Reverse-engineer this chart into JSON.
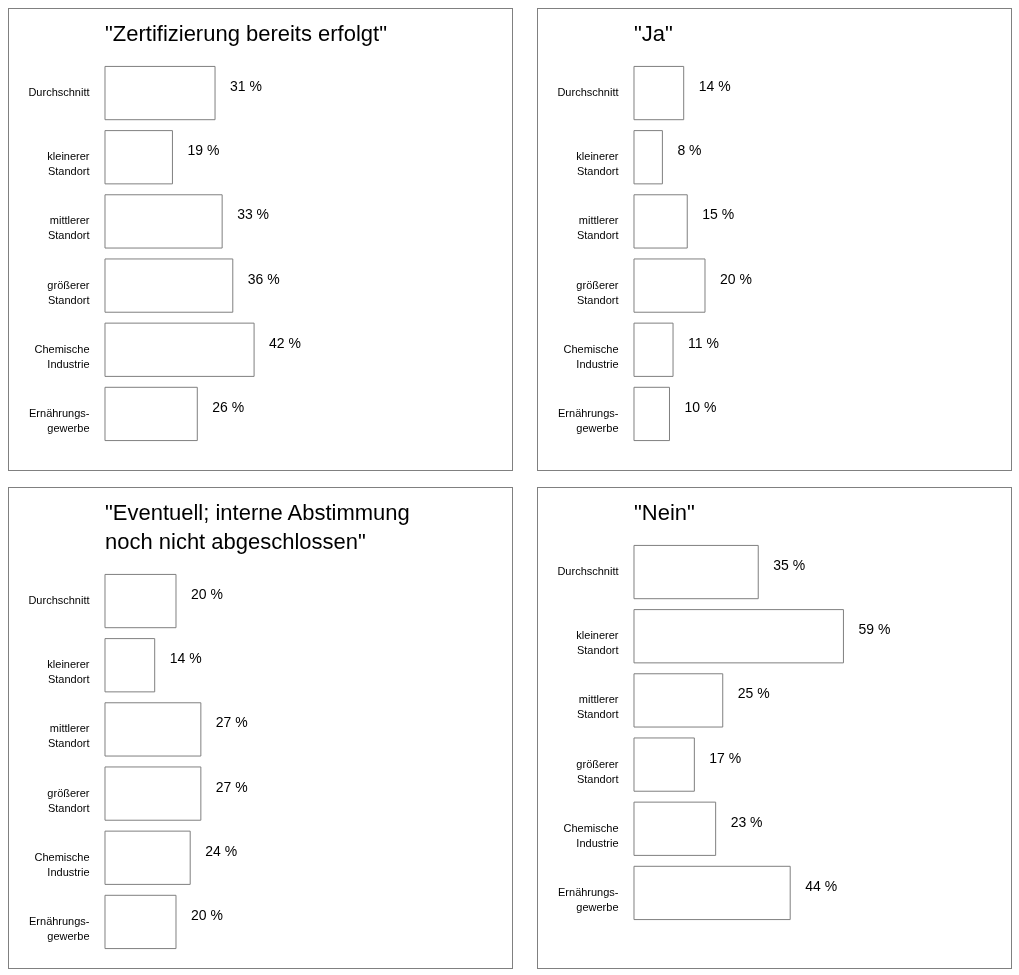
{
  "chart_data": [
    {
      "type": "bar",
      "orientation": "horizontal",
      "title": "\"Zertifizierung bereits erfolgt\"",
      "categories": [
        "Durchschnitt",
        "kleinerer\nStandort",
        "mittlerer\nStandort",
        "größerer\nStandort",
        "Chemische\nIndustrie",
        "Ernährungs-\ngewerbe"
      ],
      "color": "#ffffff",
      "values": [
        31,
        19,
        33,
        36,
        42,
        26
      ],
      "value_labels": [
        "31 %",
        "19 %",
        "33 %",
        "36 %",
        "42 %",
        "26 %"
      ]
    },
    {
      "type": "bar",
      "orientation": "horizontal",
      "title": "\"Ja\"",
      "categories": [
        "Durchschnitt",
        "kleinerer\nStandort",
        "mittlerer\nStandort",
        "größerer\nStandort",
        "Chemische\nIndustrie",
        "Ernährungs-\ngewerbe"
      ],
      "color": "#ffffff",
      "values": [
        14,
        8,
        15,
        20,
        11,
        10
      ],
      "value_labels": [
        "14 %",
        "8 %",
        "15 %",
        "20 %",
        "11 %",
        "10 %"
      ]
    },
    {
      "type": "bar",
      "orientation": "horizontal",
      "title": "\"Eventuell; interne Abstimmung noch nicht abgeschlossen\"",
      "categories": [
        "Durchschnitt",
        "kleinerer\nStandort",
        "mittlerer\nStandort",
        "größerer\nStandort",
        "Chemische\nIndustrie",
        "Ernährungs-\ngewerbe"
      ],
      "color": "#ffffff",
      "values": [
        20,
        14,
        27,
        27,
        24,
        20
      ],
      "value_labels": [
        "20 %",
        "14 %",
        "27 %",
        "27 %",
        "24 %",
        "20 %"
      ]
    },
    {
      "type": "bar",
      "orientation": "horizontal",
      "title": "\"Nein\"",
      "categories": [
        "Durchschnitt",
        "kleinerer\nStandort",
        "mittlerer\nStandort",
        "größerer\nStandort",
        "Chemische\nIndustrie",
        "Ernährungs-\ngewerbe"
      ],
      "color": "#ffffff",
      "values": [
        35,
        59,
        25,
        17,
        23,
        44
      ],
      "value_labels": [
        "35 %",
        "59 %",
        "25 %",
        "17 %",
        "23 %",
        "44 %"
      ]
    }
  ]
}
